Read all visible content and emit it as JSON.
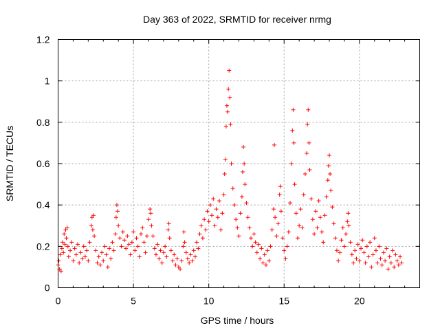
{
  "chart_data": {
    "type": "scatter",
    "title": "Day 363 of 2022, SRMTID for receiver nrmg",
    "xlabel": "GPS time / hours",
    "ylabel": "SRMTID / TECUs",
    "xlim": [
      0,
      24
    ],
    "ylim": [
      0,
      1.2
    ],
    "xticks": [
      0,
      5,
      10,
      15,
      20
    ],
    "xtick_labels": [
      "0",
      "5",
      "10",
      "15",
      "20"
    ],
    "yticks": [
      0,
      0.2,
      0.4,
      0.6,
      0.8,
      1.0,
      1.2
    ],
    "ytick_labels": [
      "0",
      "0.2",
      "0.4",
      "0.6",
      "0.8",
      "1",
      "1.2"
    ],
    "grid": true,
    "marker": "plus",
    "color": "#ff0000",
    "series": [
      {
        "name": "SRMTID",
        "points": [
          [
            0.0,
            0.11
          ],
          [
            0.05,
            0.13
          ],
          [
            0.1,
            0.09
          ],
          [
            0.15,
            0.16
          ],
          [
            0.2,
            0.08
          ],
          [
            0.25,
            0.19
          ],
          [
            0.3,
            0.22
          ],
          [
            0.35,
            0.17
          ],
          [
            0.4,
            0.26
          ],
          [
            0.45,
            0.21
          ],
          [
            0.5,
            0.28
          ],
          [
            0.55,
            0.24
          ],
          [
            0.6,
            0.29
          ],
          [
            0.65,
            0.2
          ],
          [
            0.7,
            0.15
          ],
          [
            0.8,
            0.18
          ],
          [
            0.9,
            0.22
          ],
          [
            1.0,
            0.13
          ],
          [
            1.1,
            0.19
          ],
          [
            1.2,
            0.16
          ],
          [
            1.3,
            0.21
          ],
          [
            1.4,
            0.12
          ],
          [
            1.5,
            0.17
          ],
          [
            1.6,
            0.14
          ],
          [
            1.7,
            0.2
          ],
          [
            1.8,
            0.15
          ],
          [
            1.9,
            0.18
          ],
          [
            2.0,
            0.13
          ],
          [
            2.1,
            0.22
          ],
          [
            2.2,
            0.3
          ],
          [
            2.25,
            0.34
          ],
          [
            2.3,
            0.28
          ],
          [
            2.35,
            0.35
          ],
          [
            2.4,
            0.25
          ],
          [
            2.5,
            0.18
          ],
          [
            2.6,
            0.12
          ],
          [
            2.7,
            0.15
          ],
          [
            2.8,
            0.11
          ],
          [
            2.9,
            0.17
          ],
          [
            3.0,
            0.13
          ],
          [
            3.1,
            0.2
          ],
          [
            3.2,
            0.16
          ],
          [
            3.3,
            0.1
          ],
          [
            3.4,
            0.19
          ],
          [
            3.5,
            0.14
          ],
          [
            3.6,
            0.22
          ],
          [
            3.7,
            0.18
          ],
          [
            3.8,
            0.26
          ],
          [
            3.85,
            0.34
          ],
          [
            3.9,
            0.4
          ],
          [
            3.95,
            0.37
          ],
          [
            4.0,
            0.3
          ],
          [
            4.1,
            0.24
          ],
          [
            4.2,
            0.2
          ],
          [
            4.3,
            0.27
          ],
          [
            4.4,
            0.23
          ],
          [
            4.5,
            0.19
          ],
          [
            4.6,
            0.25
          ],
          [
            4.7,
            0.21
          ],
          [
            4.8,
            0.16
          ],
          [
            4.9,
            0.22
          ],
          [
            5.0,
            0.27
          ],
          [
            5.1,
            0.18
          ],
          [
            5.2,
            0.24
          ],
          [
            5.3,
            0.2
          ],
          [
            5.4,
            0.15
          ],
          [
            5.5,
            0.26
          ],
          [
            5.6,
            0.29
          ],
          [
            5.7,
            0.22
          ],
          [
            5.8,
            0.17
          ],
          [
            5.9,
            0.25
          ],
          [
            6.0,
            0.33
          ],
          [
            6.1,
            0.38
          ],
          [
            6.15,
            0.36
          ],
          [
            6.2,
            0.3
          ],
          [
            6.3,
            0.25
          ],
          [
            6.4,
            0.19
          ],
          [
            6.5,
            0.16
          ],
          [
            6.6,
            0.21
          ],
          [
            6.7,
            0.14
          ],
          [
            6.8,
            0.18
          ],
          [
            6.9,
            0.12
          ],
          [
            7.0,
            0.17
          ],
          [
            7.1,
            0.2
          ],
          [
            7.2,
            0.15
          ],
          [
            7.3,
            0.28
          ],
          [
            7.35,
            0.31
          ],
          [
            7.4,
            0.24
          ],
          [
            7.5,
            0.18
          ],
          [
            7.6,
            0.13
          ],
          [
            7.7,
            0.16
          ],
          [
            7.8,
            0.11
          ],
          [
            7.9,
            0.14
          ],
          [
            8.0,
            0.1
          ],
          [
            8.1,
            0.09
          ],
          [
            8.2,
            0.13
          ],
          [
            8.3,
            0.2
          ],
          [
            8.35,
            0.27
          ],
          [
            8.4,
            0.22
          ],
          [
            8.5,
            0.17
          ],
          [
            8.6,
            0.14
          ],
          [
            8.7,
            0.12
          ],
          [
            8.8,
            0.16
          ],
          [
            8.9,
            0.13
          ],
          [
            9.0,
            0.18
          ],
          [
            9.1,
            0.15
          ],
          [
            9.2,
            0.22
          ],
          [
            9.3,
            0.19
          ],
          [
            9.4,
            0.26
          ],
          [
            9.5,
            0.3
          ],
          [
            9.6,
            0.24
          ],
          [
            9.7,
            0.33
          ],
          [
            9.8,
            0.28
          ],
          [
            9.9,
            0.37
          ],
          [
            10.0,
            0.32
          ],
          [
            10.1,
            0.4
          ],
          [
            10.2,
            0.35
          ],
          [
            10.3,
            0.43
          ],
          [
            10.4,
            0.3
          ],
          [
            10.5,
            0.38
          ],
          [
            10.6,
            0.34
          ],
          [
            10.7,
            0.42
          ],
          [
            10.8,
            0.28
          ],
          [
            10.9,
            0.36
          ],
          [
            11.0,
            0.45
          ],
          [
            11.05,
            0.55
          ],
          [
            11.1,
            0.62
          ],
          [
            11.15,
            0.78
          ],
          [
            11.2,
            0.88
          ],
          [
            11.25,
            0.85
          ],
          [
            11.3,
            0.96
          ],
          [
            11.35,
            1.05
          ],
          [
            11.4,
            0.92
          ],
          [
            11.45,
            0.79
          ],
          [
            11.5,
            0.6
          ],
          [
            11.6,
            0.48
          ],
          [
            11.7,
            0.4
          ],
          [
            11.8,
            0.33
          ],
          [
            11.9,
            0.29
          ],
          [
            12.0,
            0.25
          ],
          [
            12.1,
            0.36
          ],
          [
            12.2,
            0.44
          ],
          [
            12.25,
            0.56
          ],
          [
            12.3,
            0.68
          ],
          [
            12.35,
            0.6
          ],
          [
            12.4,
            0.5
          ],
          [
            12.5,
            0.41
          ],
          [
            12.6,
            0.34
          ],
          [
            12.7,
            0.29
          ],
          [
            12.8,
            0.24
          ],
          [
            12.9,
            0.2
          ],
          [
            13.0,
            0.26
          ],
          [
            13.1,
            0.22
          ],
          [
            13.2,
            0.17
          ],
          [
            13.3,
            0.21
          ],
          [
            13.4,
            0.14
          ],
          [
            13.5,
            0.19
          ],
          [
            13.6,
            0.12
          ],
          [
            13.7,
            0.16
          ],
          [
            13.8,
            0.11
          ],
          [
            13.9,
            0.18
          ],
          [
            14.0,
            0.13
          ],
          [
            14.1,
            0.2
          ],
          [
            14.2,
            0.28
          ],
          [
            14.3,
            0.38
          ],
          [
            14.35,
            0.69
          ],
          [
            14.4,
            0.34
          ],
          [
            14.5,
            0.25
          ],
          [
            14.6,
            0.31
          ],
          [
            14.7,
            0.45
          ],
          [
            14.75,
            0.49
          ],
          [
            14.8,
            0.37
          ],
          [
            14.9,
            0.24
          ],
          [
            15.0,
            0.18
          ],
          [
            15.1,
            0.14
          ],
          [
            15.2,
            0.2
          ],
          [
            15.3,
            0.27
          ],
          [
            15.4,
            0.41
          ],
          [
            15.5,
            0.6
          ],
          [
            15.55,
            0.76
          ],
          [
            15.6,
            0.86
          ],
          [
            15.65,
            0.7
          ],
          [
            15.7,
            0.5
          ],
          [
            15.8,
            0.36
          ],
          [
            15.9,
            0.24
          ],
          [
            16.0,
            0.3
          ],
          [
            16.1,
            0.38
          ],
          [
            16.2,
            0.29
          ],
          [
            16.3,
            0.45
          ],
          [
            16.4,
            0.55
          ],
          [
            16.5,
            0.65
          ],
          [
            16.55,
            0.79
          ],
          [
            16.6,
            0.86
          ],
          [
            16.65,
            0.7
          ],
          [
            16.7,
            0.57
          ],
          [
            16.8,
            0.43
          ],
          [
            16.9,
            0.33
          ],
          [
            17.0,
            0.26
          ],
          [
            17.1,
            0.37
          ],
          [
            17.2,
            0.29
          ],
          [
            17.3,
            0.42
          ],
          [
            17.4,
            0.34
          ],
          [
            17.5,
            0.27
          ],
          [
            17.6,
            0.22
          ],
          [
            17.7,
            0.35
          ],
          [
            17.8,
            0.44
          ],
          [
            17.9,
            0.52
          ],
          [
            17.95,
            0.59
          ],
          [
            18.0,
            0.64
          ],
          [
            18.05,
            0.55
          ],
          [
            18.1,
            0.47
          ],
          [
            18.2,
            0.39
          ],
          [
            18.3,
            0.31
          ],
          [
            18.4,
            0.24
          ],
          [
            18.5,
            0.18
          ],
          [
            18.6,
            0.13
          ],
          [
            18.7,
            0.17
          ],
          [
            18.8,
            0.23
          ],
          [
            18.9,
            0.29
          ],
          [
            19.0,
            0.2
          ],
          [
            19.1,
            0.26
          ],
          [
            19.2,
            0.32
          ],
          [
            19.25,
            0.36
          ],
          [
            19.3,
            0.3
          ],
          [
            19.4,
            0.22
          ],
          [
            19.5,
            0.16
          ],
          [
            19.6,
            0.12
          ],
          [
            19.7,
            0.18
          ],
          [
            19.8,
            0.14
          ],
          [
            19.9,
            0.21
          ],
          [
            20.0,
            0.13
          ],
          [
            20.1,
            0.19
          ],
          [
            20.2,
            0.23
          ],
          [
            20.3,
            0.17
          ],
          [
            20.4,
            0.12
          ],
          [
            20.5,
            0.2
          ],
          [
            20.6,
            0.15
          ],
          [
            20.7,
            0.22
          ],
          [
            20.8,
            0.1
          ],
          [
            20.9,
            0.16
          ],
          [
            21.0,
            0.24
          ],
          [
            21.1,
            0.18
          ],
          [
            21.2,
            0.12
          ],
          [
            21.3,
            0.2
          ],
          [
            21.4,
            0.14
          ],
          [
            21.5,
            0.11
          ],
          [
            21.6,
            0.17
          ],
          [
            21.7,
            0.13
          ],
          [
            21.8,
            0.19
          ],
          [
            21.9,
            0.09
          ],
          [
            22.0,
            0.15
          ],
          [
            22.1,
            0.12
          ],
          [
            22.2,
            0.18
          ],
          [
            22.3,
            0.1
          ],
          [
            22.4,
            0.16
          ],
          [
            22.5,
            0.13
          ],
          [
            22.6,
            0.11
          ],
          [
            22.7,
            0.15
          ],
          [
            22.8,
            0.12
          ]
        ]
      }
    ]
  }
}
